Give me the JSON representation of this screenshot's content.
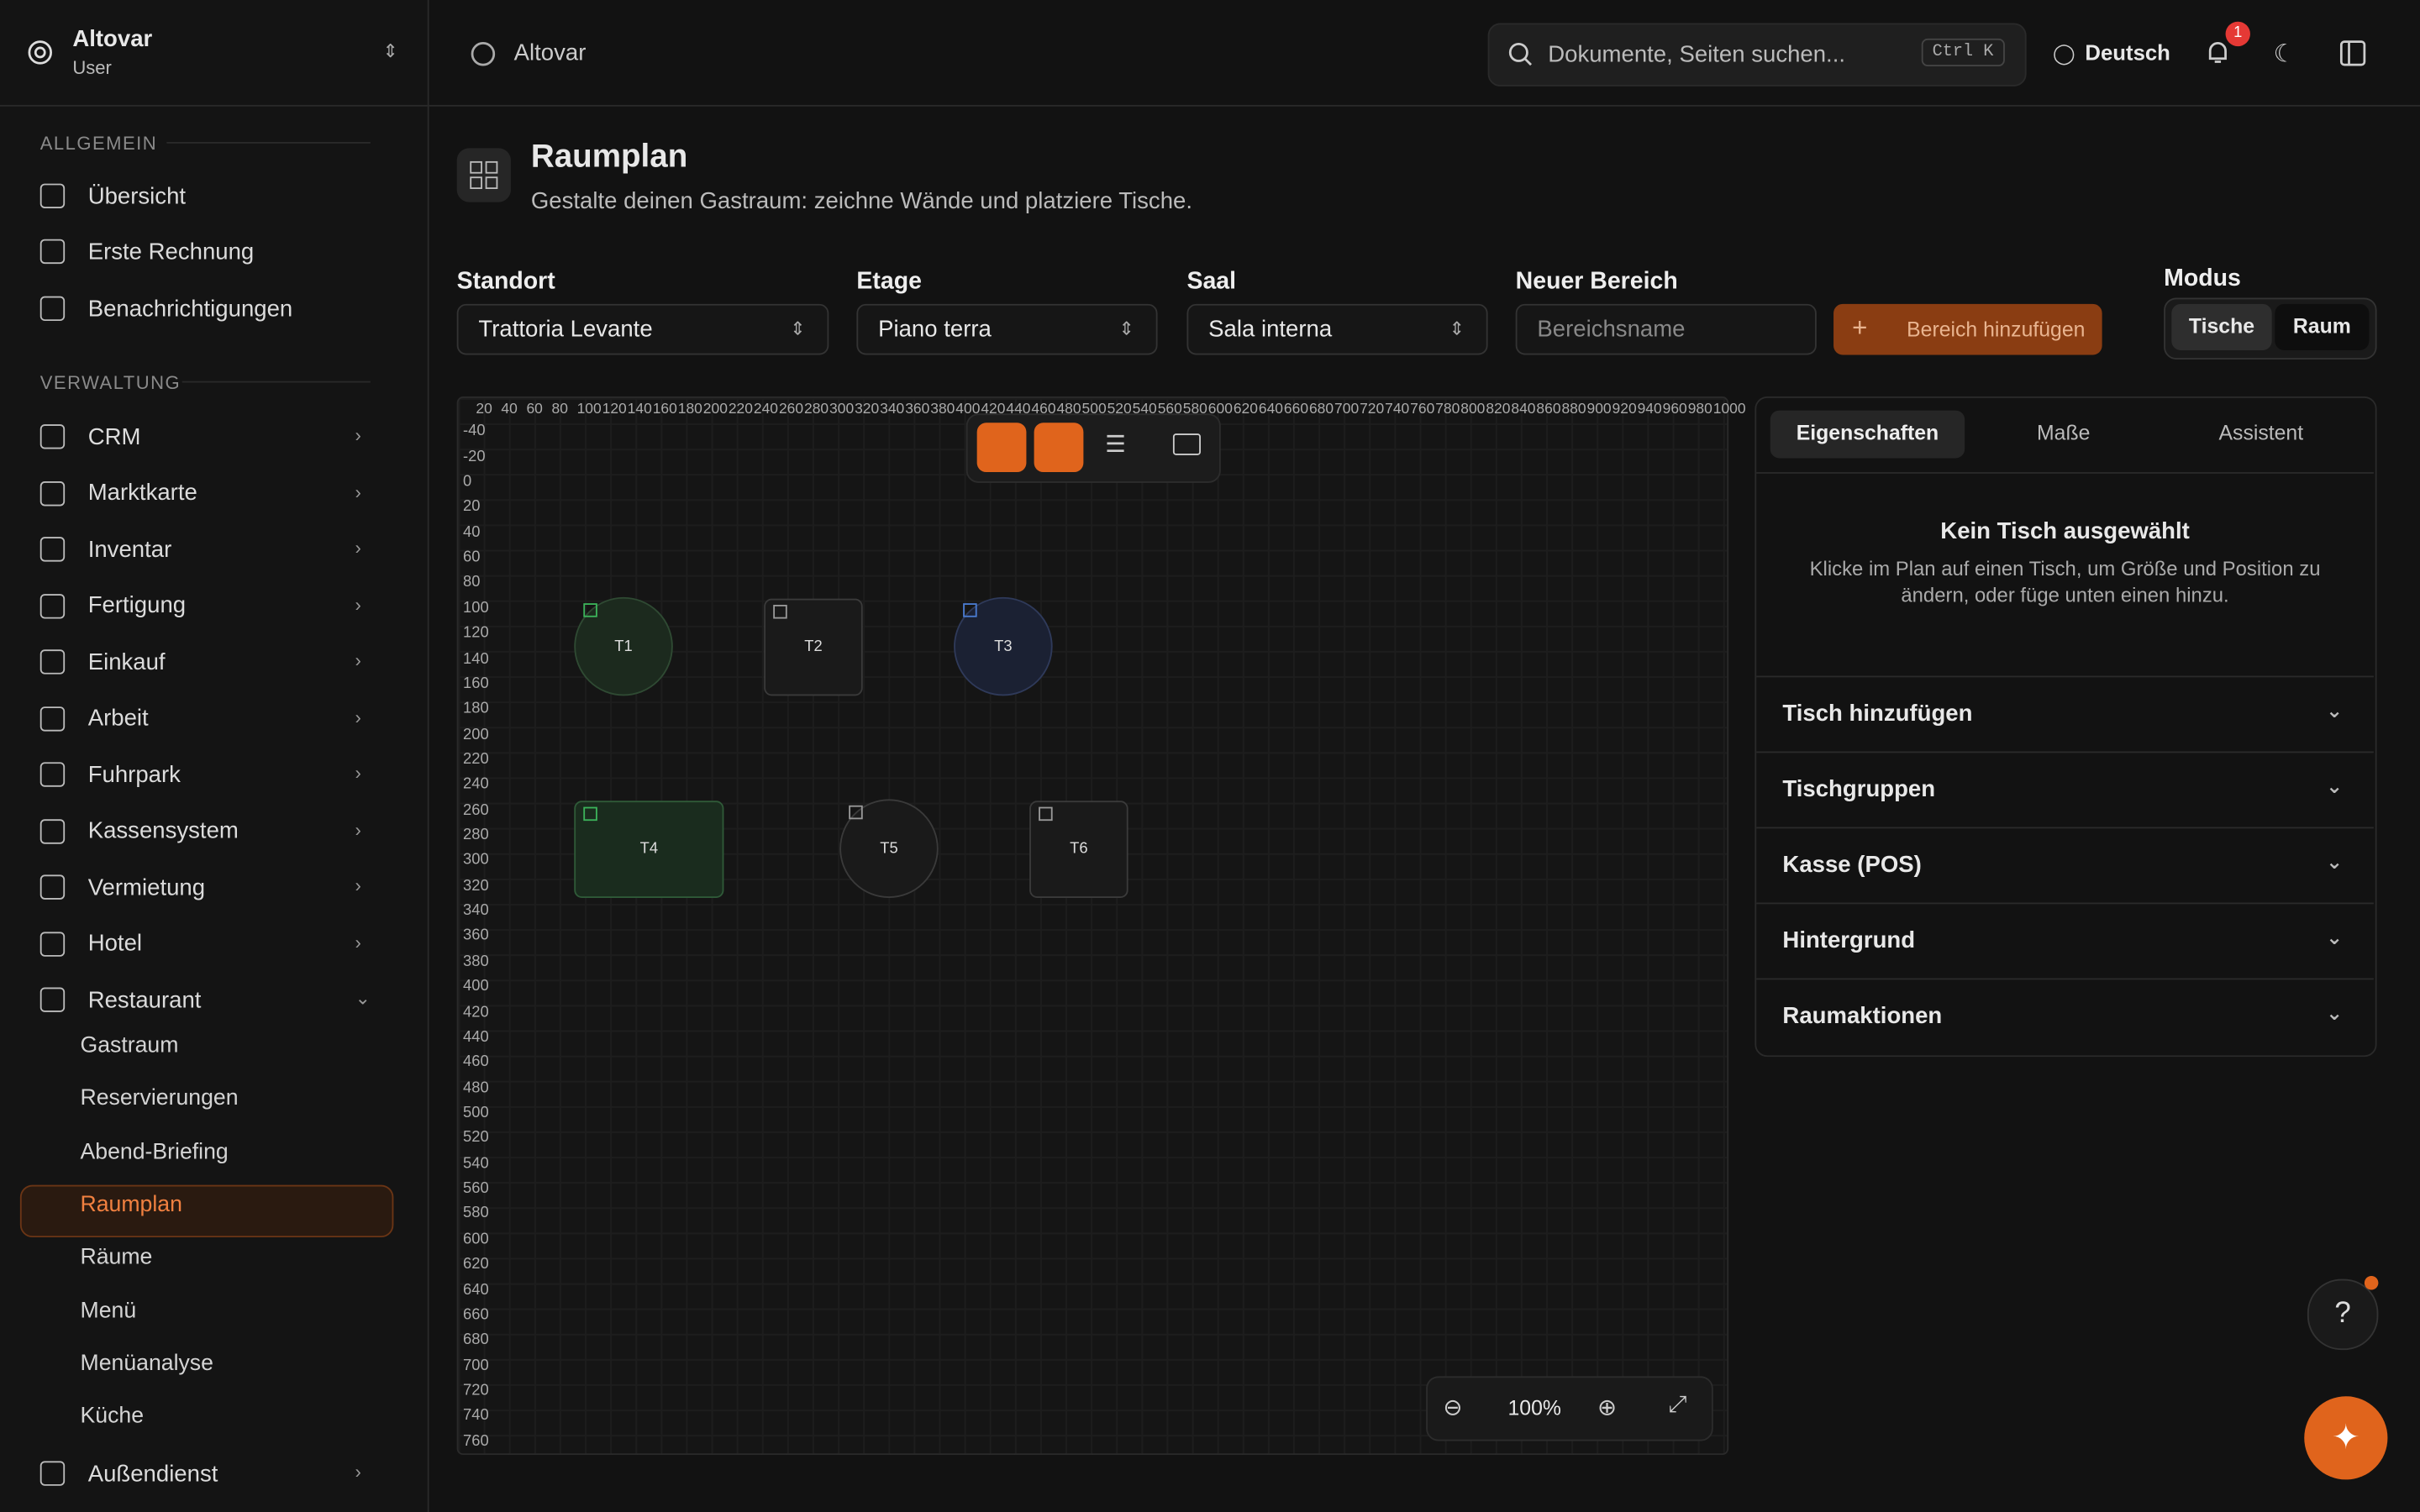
{
  "sidebar": {
    "brand": "Altovar",
    "role": "User",
    "sections": [
      {
        "title": "ALLGEMEIN",
        "items": [
          "Übersicht",
          "Erste Rechnung",
          "Benachrichtigungen"
        ]
      },
      {
        "title": "VERWALTUNG",
        "items": [
          "CRM",
          "Marktkarte",
          "Inventar",
          "Fertigung",
          "Einkauf",
          "Arbeit",
          "Fuhrpark",
          "Kassensystem",
          "Vermietung",
          "Hotel",
          "Restaurant"
        ]
      }
    ],
    "restaurant_sub": [
      "Gastraum",
      "Reservierungen",
      "Abend-Briefing",
      "Raumplan",
      "Räume",
      "Menü",
      "Menüanalyse",
      "Küche"
    ],
    "last_item": "Außendienst"
  },
  "header": {
    "breadcrumb": "Altovar",
    "search_placeholder": "Dokumente, Seiten suchen...",
    "shortcut": "Ctrl K",
    "language": "Deutsch",
    "notifications": 1
  },
  "page": {
    "title": "Raumplan",
    "subtitle": "Gestalte deinen Gastraum: zeichne Wände und platziere Tische.",
    "filters": [
      {
        "label": "Standort",
        "value": "Trattoria Levante"
      },
      {
        "label": "Etage",
        "value": "Piano terra"
      },
      {
        "label": "Saal",
        "value": "Sala interna"
      }
    ],
    "new_area": {
      "label": "Neuer Bereich",
      "placeholder": "Bereichsname",
      "button": "Bereich hinzufügen"
    },
    "mode": {
      "label": "Modus",
      "options": [
        "Tische",
        "Raum"
      ]
    }
  },
  "plan": {
    "ruler_x": [
      20,
      40,
      60,
      80,
      100,
      120,
      140,
      160,
      180,
      200,
      220,
      240,
      260,
      280,
      300,
      320,
      340,
      360,
      380,
      400,
      420,
      440,
      460,
      480,
      500,
      520,
      540,
      560,
      580,
      600,
      620,
      640,
      660,
      680,
      700,
      720,
      740,
      760,
      780,
      800,
      820,
      840,
      860,
      880,
      900,
      920,
      940,
      960,
      980,
      1000
    ],
    "ruler_y": [
      -40,
      -20,
      0,
      20,
      40,
      60,
      80,
      100,
      120,
      140,
      160,
      180,
      200,
      220,
      240,
      260,
      280,
      300,
      320,
      340,
      360,
      380,
      400,
      420,
      440,
      460,
      480,
      500,
      520,
      540,
      560,
      580,
      600,
      620,
      640,
      660,
      680,
      700,
      720,
      740,
      760
    ],
    "tables": [
      "T1",
      "T2",
      "T3",
      "T4",
      "T5",
      "T6"
    ],
    "zoom": "100%"
  },
  "panel": {
    "tabs": [
      "Eigenschaften",
      "Maße",
      "Assistent"
    ],
    "empty_title": "Kein Tisch ausgewählt",
    "empty_text": "Klicke im Plan auf einen Tisch, um Größe und Position zu ändern, oder füge unten einen hinzu.",
    "sections": [
      "Tisch hinzufügen",
      "Tischgruppen",
      "Kasse (POS)",
      "Hintergrund",
      "Raumaktionen"
    ]
  }
}
